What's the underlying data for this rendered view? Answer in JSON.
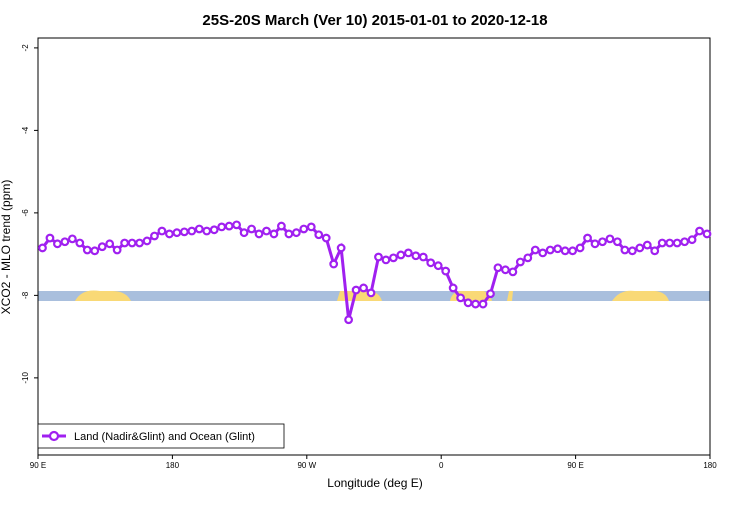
{
  "chart_data": {
    "type": "line",
    "title": "25S-20S March (Ver 10)   2015-01-01 to 2020-12-18",
    "x_label": "Longitude (deg E)",
    "y_label": "XCO2 - MLO trend (ppm)",
    "xlim": [
      90,
      540
    ],
    "xticks": [
      {
        "value": 90,
        "label": "90 E"
      },
      180,
      {
        "value": 270,
        "label": "90 W"
      },
      {
        "value": 360,
        "label": "0"
      },
      {
        "value": 450,
        "label": "90 E"
      },
      {
        "value": 540,
        "label": "180"
      }
    ],
    "ylim": [
      -11.87,
      -1.76
    ],
    "yticks": [
      -2,
      -4,
      -6,
      -8,
      -10
    ],
    "legend": "bottom-left",
    "x": [
      93,
      98,
      103,
      108,
      113,
      118,
      123,
      128,
      133,
      138,
      143,
      148,
      153,
      158,
      163,
      168,
      173,
      178,
      183,
      188,
      193,
      198,
      203,
      208,
      213,
      218,
      223,
      228,
      233,
      238,
      243,
      248,
      253,
      258,
      263,
      268,
      273,
      278,
      283,
      288,
      293,
      298,
      303,
      308,
      313,
      318,
      323,
      328,
      333,
      338,
      343,
      348,
      353,
      358,
      363,
      368,
      373,
      378,
      383,
      388,
      393,
      398,
      403,
      408,
      413,
      418,
      423,
      428,
      433,
      438,
      443,
      448,
      453,
      458,
      463,
      468,
      473,
      478,
      483,
      488,
      493,
      498,
      503,
      508,
      513,
      518,
      523,
      528,
      533,
      538
    ],
    "series": [
      {
        "name": "Land (Nadir&Glint) and Ocean (Glint)",
        "color": "#a020f0",
        "values": [
          -6.85,
          -6.61,
          -6.75,
          -6.7,
          -6.63,
          -6.73,
          -6.9,
          -6.92,
          -6.82,
          -6.75,
          -6.9,
          -6.73,
          -6.73,
          -6.73,
          -6.68,
          -6.56,
          -6.44,
          -6.51,
          -6.48,
          -6.46,
          -6.44,
          -6.39,
          -6.44,
          -6.41,
          -6.34,
          -6.32,
          -6.29,
          -6.48,
          -6.39,
          -6.51,
          -6.44,
          -6.51,
          -6.32,
          -6.51,
          -6.48,
          -6.39,
          -6.34,
          -6.53,
          -6.61,
          -7.24,
          -6.85,
          -8.59,
          -7.87,
          -7.82,
          -7.94,
          -7.07,
          -7.14,
          -7.09,
          -7.02,
          -6.97,
          -7.04,
          -7.07,
          -7.21,
          -7.28,
          -7.41,
          -7.82,
          -8.06,
          -8.18,
          -8.21,
          -8.21,
          -7.96,
          -7.33,
          -7.38,
          -7.43,
          -7.19,
          -7.09,
          -6.9,
          -6.97,
          -6.9,
          -6.87,
          -6.92,
          -6.92,
          -6.85,
          -6.61,
          -6.75,
          -6.7,
          -6.63,
          -6.7,
          -6.9,
          -6.92,
          -6.85,
          -6.78,
          -6.92,
          -6.73,
          -6.73,
          -6.73,
          -6.7,
          -6.65,
          -6.44,
          -6.51
        ]
      }
    ]
  }
}
